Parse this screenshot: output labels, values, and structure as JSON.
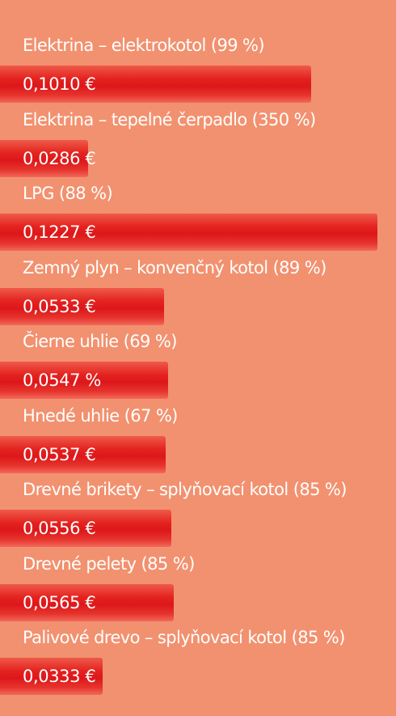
{
  "chart_data": {
    "type": "bar",
    "orientation": "horizontal",
    "categories": [
      "Elektrina – elektrokotol (99 %)",
      "Elektrina – tepelné čerpadlo (350 %)",
      "LPG (88 %)",
      "Zemný plyn – konvenčný kotol (89 %)",
      "Čierne uhlie (69 %)",
      "Hnedé uhlie (67 %)",
      "Drevné brikety – splyňovací kotol (85 %)",
      "Drevné pelety (85 %)",
      "Palivové drevo – splyňovací kotol (85 %)"
    ],
    "values": [
      0.101,
      0.0286,
      0.1227,
      0.0533,
      0.0547,
      0.0537,
      0.0556,
      0.0565,
      0.0333
    ],
    "value_labels": [
      "0,1010 €",
      "0,0286 €",
      "0,1227 €",
      "0,0533 €",
      "0,0547 %",
      "0,0537 €",
      "0,0556 €",
      "0,0565 €",
      "0,0333 €"
    ],
    "title": "",
    "xlabel": "",
    "ylabel": "",
    "grid": false,
    "legend": "none"
  },
  "colors": {
    "background": "#f2916f",
    "bar": "#e4231f",
    "text": "#ffffff"
  }
}
